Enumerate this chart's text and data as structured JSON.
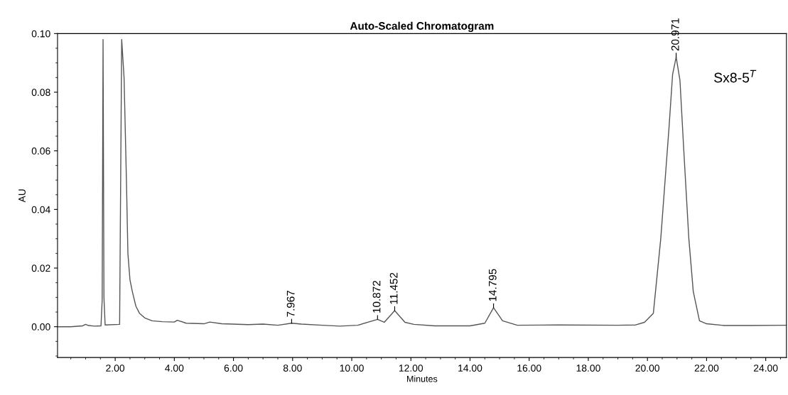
{
  "chart_data": {
    "type": "line",
    "title": "Auto-Scaled Chromatogram",
    "xlabel": "Minutes",
    "ylabel": "AU",
    "series": [
      {
        "color": "#555555",
        "x": [
          0.05,
          0.5,
          0.9,
          1.0,
          1.1,
          1.3,
          1.52,
          1.56,
          1.59,
          1.62,
          1.66,
          2.15,
          2.22,
          2.3,
          2.38,
          2.43,
          2.5,
          2.58,
          2.7,
          2.82,
          3.0,
          3.25,
          3.6,
          4.0,
          4.1,
          4.4,
          5.0,
          5.2,
          5.6,
          6.5,
          7.0,
          7.5,
          7.967,
          8.3,
          9.0,
          9.6,
          10.2,
          10.872,
          11.1,
          11.452,
          11.8,
          12.1,
          12.8,
          14.0,
          14.5,
          14.795,
          15.1,
          15.6,
          17.0,
          19.0,
          19.6,
          19.9,
          20.2,
          20.45,
          20.73,
          20.85,
          20.971,
          21.1,
          21.23,
          21.4,
          21.55,
          21.76,
          22.0,
          22.6,
          23.5,
          24.7
        ],
        "values": [
          0.0,
          0.0,
          0.0003,
          0.0008,
          0.0004,
          0.0002,
          0.0003,
          0.009,
          0.098,
          0.01,
          0.0006,
          0.0008,
          0.098,
          0.085,
          0.05,
          0.025,
          0.016,
          0.012,
          0.007,
          0.0046,
          0.003,
          0.002,
          0.0017,
          0.0016,
          0.0022,
          0.0012,
          0.001,
          0.0016,
          0.001,
          0.0007,
          0.0009,
          0.0005,
          0.0012,
          0.0009,
          0.0005,
          0.0002,
          0.0005,
          0.0025,
          0.0015,
          0.0055,
          0.0015,
          0.0008,
          0.0003,
          0.0003,
          0.0012,
          0.0065,
          0.002,
          0.0005,
          0.0006,
          0.0005,
          0.0006,
          0.0015,
          0.0046,
          0.03,
          0.068,
          0.086,
          0.092,
          0.084,
          0.06,
          0.03,
          0.012,
          0.002,
          0.001,
          0.0004,
          0.0004,
          0.0005
        ]
      }
    ],
    "xlim": [
      0.05,
      24.7
    ],
    "ylim": [
      -0.0105,
      0.1
    ],
    "xticks": [
      {
        "value": 2,
        "label": "2.00"
      },
      {
        "value": 4,
        "label": "4.00"
      },
      {
        "value": 6,
        "label": "6.00"
      },
      {
        "value": 8,
        "label": "8.00"
      },
      {
        "value": 10,
        "label": "10.00"
      },
      {
        "value": 12,
        "label": "12.00"
      },
      {
        "value": 14,
        "label": "14.00"
      },
      {
        "value": 16,
        "label": "16.00"
      },
      {
        "value": 18,
        "label": "18.00"
      },
      {
        "value": 20,
        "label": "20.00"
      },
      {
        "value": 22,
        "label": "22.00"
      },
      {
        "value": 24,
        "label": "24.00"
      }
    ],
    "yticks": [
      {
        "value": 0,
        "label": "0.00"
      },
      {
        "value": 0.02,
        "label": "0.02"
      },
      {
        "value": 0.04,
        "label": "0.04"
      },
      {
        "value": 0.06,
        "label": "0.06"
      },
      {
        "value": 0.08,
        "label": "0.08"
      },
      {
        "value": 0.1,
        "label": "0.10"
      }
    ],
    "annotations": [
      {
        "text": "7.967",
        "x": 7.967,
        "y": 0.0012
      },
      {
        "text": "10.872",
        "x": 10.872,
        "y": 0.0025
      },
      {
        "text": "11.452",
        "x": 11.452,
        "y": 0.0055
      },
      {
        "text": "14.795",
        "x": 14.795,
        "y": 0.0065
      },
      {
        "text": "20.971",
        "x": 20.971,
        "y": 0.092
      },
      "Sx8-5$^{T}$"
    ],
    "grid": false,
    "legend": false,
    "line_style": "solid",
    "marker": "none"
  }
}
